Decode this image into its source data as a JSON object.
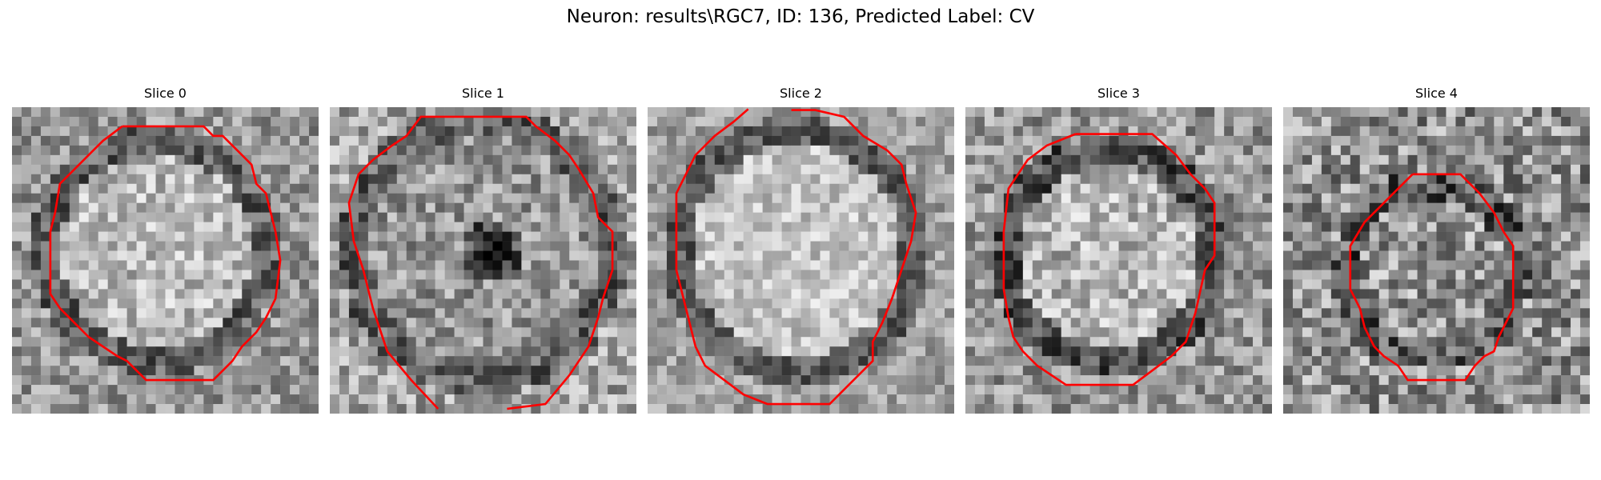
{
  "figure": {
    "title": "Neuron: results\\RGC7, ID: 136, Predicted Label: CV",
    "contour_color": "#ff0000"
  },
  "panels": [
    {
      "label": "Slice 0"
    },
    {
      "label": "Slice 1"
    },
    {
      "label": "Slice 2"
    },
    {
      "label": "Slice 3"
    },
    {
      "label": "Slice 4"
    }
  ]
}
